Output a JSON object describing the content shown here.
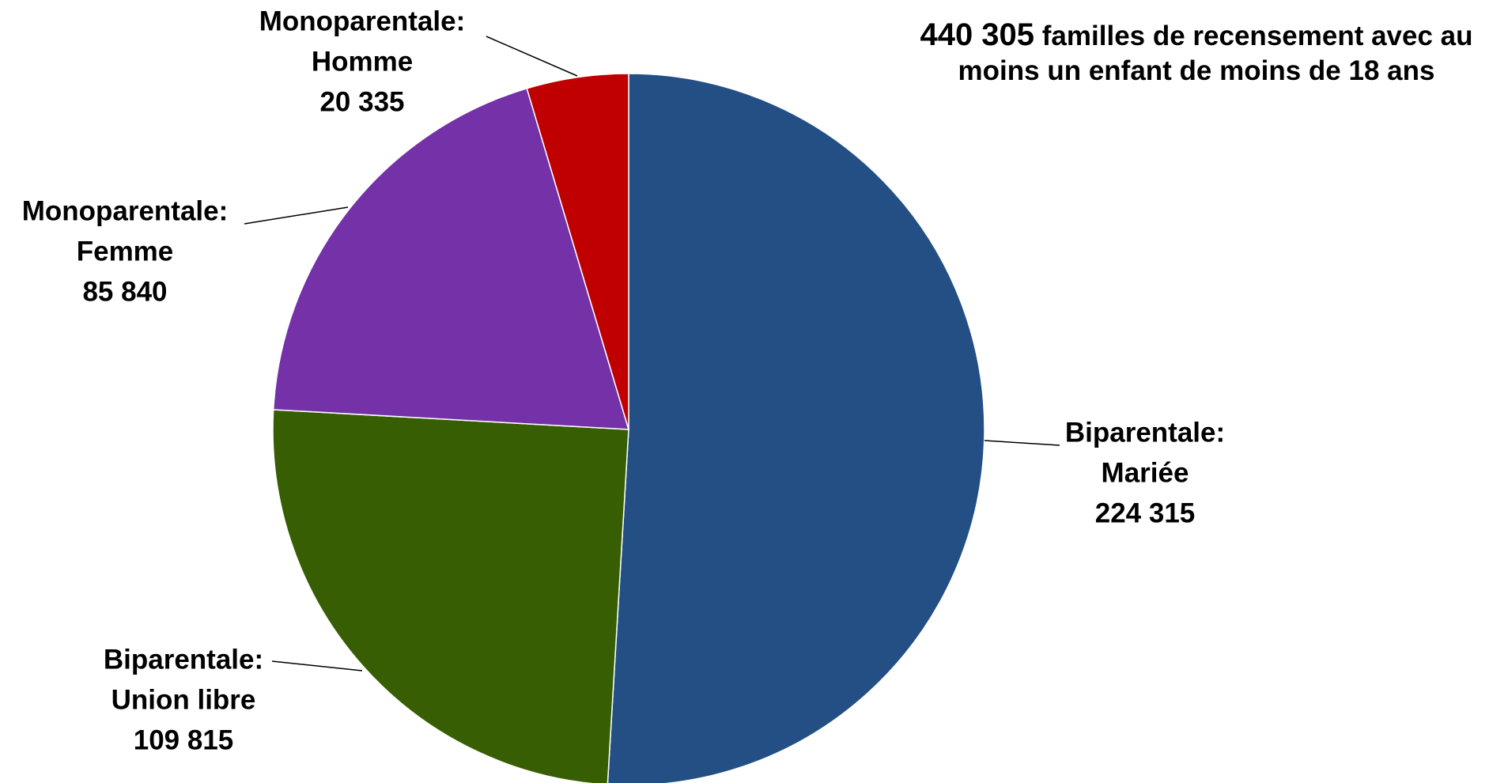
{
  "chart_data": {
    "type": "pie",
    "title_number": "440 305",
    "title_text": "familles de recensement avec au moins un enfant de moins de 18 ans",
    "slices": [
      {
        "label_line1": "Biparentale:",
        "label_line2": "Mariée",
        "value_text": "224 315",
        "value": 224315,
        "color": "#234f84"
      },
      {
        "label_line1": "Biparentale:",
        "label_line2": "Union libre",
        "value_text": "109 815",
        "value": 109815,
        "color": "#375e03"
      },
      {
        "label_line1": "Monoparentale:",
        "label_line2": "Femme",
        "value_text": "85 840",
        "value": 85840,
        "color": "#7431a8"
      },
      {
        "label_line1": "Monoparentale:",
        "label_line2": "Homme",
        "value_text": "20 335",
        "value": 20335,
        "color": "#c00000"
      }
    ]
  }
}
